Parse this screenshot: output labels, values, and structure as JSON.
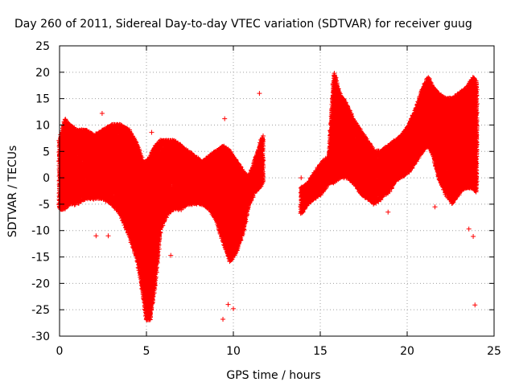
{
  "chart_data": {
    "type": "scatter",
    "title": "Day 260 of 2011, Sidereal Day-to-day VTEC variation (SDTVAR) for receiver guug",
    "xlabel": "GPS time / hours",
    "ylabel": "SDTVAR / TECUs",
    "xlim": [
      0,
      25
    ],
    "ylim": [
      -30,
      25
    ],
    "x_ticks": [
      0,
      5,
      10,
      15,
      20,
      25
    ],
    "y_ticks": [
      25,
      20,
      15,
      10,
      5,
      0,
      -5,
      -10,
      -15,
      -20,
      -25,
      -30
    ],
    "grid": true,
    "marker": "+",
    "series_color": "#ff0000",
    "series": [
      {
        "name": "SDTVAR",
        "envelope_hours": [
          0,
          0.3,
          0.6,
          1.0,
          1.5,
          2.0,
          2.5,
          3.0,
          3.5,
          4.0,
          4.5,
          4.8,
          5.0,
          5.2,
          5.5,
          5.8,
          6.2,
          6.6,
          7.0,
          7.4,
          7.8,
          8.2,
          8.6,
          9.0,
          9.4,
          9.8,
          10.2,
          10.6,
          10.9,
          11.2,
          11.5,
          11.7
        ],
        "upper_tecu": [
          7,
          11,
          10,
          9,
          9,
          8,
          9,
          10,
          10,
          9,
          6,
          3,
          3,
          4,
          6,
          7,
          7,
          7,
          6,
          5,
          4,
          3,
          4,
          5,
          6,
          5,
          3,
          1,
          0,
          3,
          6,
          8
        ],
        "lower_tecu": [
          -6,
          -6,
          -5,
          -5,
          -4,
          -4,
          -4,
          -5,
          -7,
          -11,
          -16,
          -22,
          -27,
          -27,
          -20,
          -10,
          -7,
          -6,
          -6,
          -5,
          -5,
          -5,
          -6,
          -8,
          -12,
          -16,
          -14,
          -10,
          -5,
          -3,
          -2,
          -1
        ],
        "envelope_hours_2": [
          13.9,
          14.3,
          14.7,
          15.1,
          15.5,
          15.8,
          16.1,
          16.5,
          16.9,
          17.3,
          17.7,
          18.1,
          18.5,
          18.9,
          19.3,
          19.7,
          20.1,
          20.5,
          20.9,
          21.2,
          21.5,
          21.8,
          22.2,
          22.6,
          23.0,
          23.4,
          23.8,
          24.0
        ],
        "upper_tecu_2": [
          -2,
          -1,
          1,
          3,
          4,
          20,
          16,
          14,
          11,
          9,
          7,
          5,
          5,
          6,
          7,
          8,
          10,
          13,
          17,
          19,
          17,
          16,
          15,
          15,
          16,
          17,
          19,
          18
        ],
        "lower_tecu_2": [
          -7,
          -5,
          -4,
          -3,
          -1,
          -1,
          0,
          0,
          -1,
          -3,
          -4,
          -5,
          -4,
          -3,
          -1,
          0,
          1,
          3,
          5,
          6,
          4,
          0,
          -3,
          -5,
          -3,
          -2,
          -2,
          -3
        ],
        "outliers": [
          {
            "x": 2.45,
            "y": 12.2
          },
          {
            "x": 2.1,
            "y": -11.0
          },
          {
            "x": 2.8,
            "y": -11.0
          },
          {
            "x": 5.3,
            "y": 8.6
          },
          {
            "x": 6.4,
            "y": -14.7
          },
          {
            "x": 9.5,
            "y": 11.2
          },
          {
            "x": 9.4,
            "y": -26.8
          },
          {
            "x": 9.7,
            "y": -24.0
          },
          {
            "x": 10.0,
            "y": -24.8
          },
          {
            "x": 11.5,
            "y": 16.0
          },
          {
            "x": 15.7,
            "y": 10.2
          },
          {
            "x": 18.9,
            "y": -6.5
          },
          {
            "x": 21.6,
            "y": -5.5
          },
          {
            "x": 23.55,
            "y": -9.7
          },
          {
            "x": 23.9,
            "y": -24.1
          },
          {
            "x": 23.8,
            "y": -11.1
          },
          {
            "x": 13.9,
            "y": 0.0
          }
        ]
      }
    ]
  }
}
